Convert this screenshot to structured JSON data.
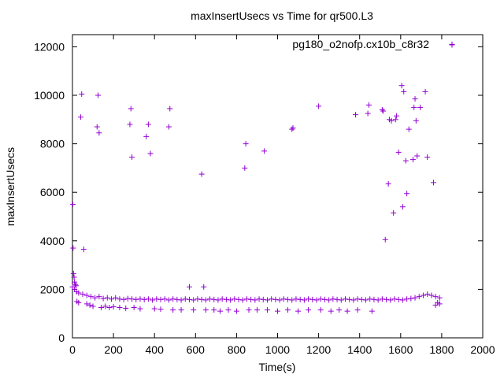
{
  "chart_data": {
    "type": "scatter",
    "title": "maxInsertUsecs vs Time for qr500.L3",
    "xlabel": "Time(s)",
    "ylabel": "maxInsertUsecs",
    "xlim": [
      0,
      2000
    ],
    "ylim": [
      0,
      12500
    ],
    "xticks": [
      0,
      200,
      400,
      600,
      800,
      1000,
      1200,
      1400,
      1600,
      1800,
      2000
    ],
    "yticks": [
      0,
      2000,
      4000,
      6000,
      8000,
      10000,
      12000
    ],
    "grid": false,
    "legend_position": "top-right",
    "marker": "plus",
    "color": "#9400d3",
    "series": [
      {
        "name": "pg180_o2nofp.cx10b_c8r32",
        "points": [
          [
            2,
            5500
          ],
          [
            3,
            3700
          ],
          [
            5,
            2650
          ],
          [
            8,
            2500
          ],
          [
            10,
            2300
          ],
          [
            14,
            2200
          ],
          [
            18,
            2150
          ],
          [
            22,
            1500
          ],
          [
            30,
            1450
          ],
          [
            40,
            9100
          ],
          [
            45,
            10050
          ],
          [
            55,
            3650
          ],
          [
            70,
            1400
          ],
          [
            85,
            1350
          ],
          [
            100,
            1300
          ],
          [
            120,
            8700
          ],
          [
            125,
            10000
          ],
          [
            130,
            8450
          ],
          [
            140,
            1250
          ],
          [
            160,
            1300
          ],
          [
            180,
            1250
          ],
          [
            200,
            1280
          ],
          [
            230,
            1250
          ],
          [
            260,
            1220
          ],
          [
            280,
            8800
          ],
          [
            285,
            9450
          ],
          [
            290,
            7450
          ],
          [
            300,
            1250
          ],
          [
            330,
            1200
          ],
          [
            360,
            8300
          ],
          [
            370,
            8800
          ],
          [
            380,
            7600
          ],
          [
            400,
            1200
          ],
          [
            430,
            1180
          ],
          [
            470,
            8700
          ],
          [
            475,
            9450
          ],
          [
            490,
            1150
          ],
          [
            530,
            1150
          ],
          [
            570,
            2100
          ],
          [
            590,
            1150
          ],
          [
            630,
            6750
          ],
          [
            640,
            2100
          ],
          [
            650,
            1150
          ],
          [
            690,
            1150
          ],
          [
            720,
            1100
          ],
          [
            760,
            1150
          ],
          [
            800,
            1100
          ],
          [
            840,
            7000
          ],
          [
            845,
            8000
          ],
          [
            860,
            1150
          ],
          [
            900,
            1150
          ],
          [
            935,
            7700
          ],
          [
            950,
            1150
          ],
          [
            1000,
            1100
          ],
          [
            1050,
            1150
          ],
          [
            1070,
            8600
          ],
          [
            1075,
            8650
          ],
          [
            1100,
            1100
          ],
          [
            1150,
            1150
          ],
          [
            1200,
            9550
          ],
          [
            1210,
            1150
          ],
          [
            1260,
            1100
          ],
          [
            1300,
            1150
          ],
          [
            1340,
            1100
          ],
          [
            1380,
            9200
          ],
          [
            1390,
            1150
          ],
          [
            1440,
            9250
          ],
          [
            1445,
            9600
          ],
          [
            1460,
            1100
          ],
          [
            1510,
            9400
          ],
          [
            1515,
            9350
          ],
          [
            1525,
            4050
          ],
          [
            1540,
            6350
          ],
          [
            1545,
            9000
          ],
          [
            1555,
            8950
          ],
          [
            1565,
            5150
          ],
          [
            1575,
            9000
          ],
          [
            1580,
            9150
          ],
          [
            1590,
            7650
          ],
          [
            1605,
            10400
          ],
          [
            1610,
            5400
          ],
          [
            1615,
            10150
          ],
          [
            1625,
            7300
          ],
          [
            1630,
            5950
          ],
          [
            1640,
            8600
          ],
          [
            1660,
            7350
          ],
          [
            1665,
            9500
          ],
          [
            1670,
            9850
          ],
          [
            1675,
            8950
          ],
          [
            1680,
            7500
          ],
          [
            1695,
            9500
          ],
          [
            1720,
            10150
          ],
          [
            1730,
            7450
          ],
          [
            1760,
            6400
          ],
          [
            1770,
            1350
          ],
          [
            1780,
            1450
          ],
          [
            1790,
            1400
          ],
          [
            1850,
            12100
          ],
          [
            0,
            2100
          ],
          [
            10,
            2000
          ],
          [
            20,
            1900
          ],
          [
            30,
            1850
          ],
          [
            50,
            1800
          ],
          [
            70,
            1750
          ],
          [
            90,
            1700
          ],
          [
            110,
            1650
          ],
          [
            130,
            1700
          ],
          [
            150,
            1620
          ],
          [
            170,
            1650
          ],
          [
            190,
            1600
          ],
          [
            210,
            1650
          ],
          [
            230,
            1600
          ],
          [
            250,
            1580
          ],
          [
            270,
            1620
          ],
          [
            290,
            1600
          ],
          [
            310,
            1580
          ],
          [
            330,
            1600
          ],
          [
            350,
            1580
          ],
          [
            370,
            1600
          ],
          [
            390,
            1560
          ],
          [
            410,
            1600
          ],
          [
            430,
            1580
          ],
          [
            450,
            1600
          ],
          [
            470,
            1560
          ],
          [
            490,
            1600
          ],
          [
            510,
            1580
          ],
          [
            530,
            1560
          ],
          [
            550,
            1600
          ],
          [
            570,
            1580
          ],
          [
            590,
            1560
          ],
          [
            610,
            1600
          ],
          [
            630,
            1580
          ],
          [
            650,
            1560
          ],
          [
            670,
            1600
          ],
          [
            690,
            1580
          ],
          [
            710,
            1560
          ],
          [
            730,
            1600
          ],
          [
            750,
            1580
          ],
          [
            770,
            1560
          ],
          [
            790,
            1600
          ],
          [
            810,
            1580
          ],
          [
            830,
            1560
          ],
          [
            850,
            1600
          ],
          [
            870,
            1580
          ],
          [
            890,
            1560
          ],
          [
            910,
            1600
          ],
          [
            930,
            1580
          ],
          [
            950,
            1560
          ],
          [
            970,
            1600
          ],
          [
            990,
            1580
          ],
          [
            1010,
            1560
          ],
          [
            1030,
            1600
          ],
          [
            1050,
            1580
          ],
          [
            1070,
            1560
          ],
          [
            1090,
            1600
          ],
          [
            1110,
            1580
          ],
          [
            1130,
            1560
          ],
          [
            1150,
            1600
          ],
          [
            1170,
            1580
          ],
          [
            1190,
            1560
          ],
          [
            1210,
            1600
          ],
          [
            1230,
            1580
          ],
          [
            1250,
            1560
          ],
          [
            1270,
            1600
          ],
          [
            1290,
            1580
          ],
          [
            1310,
            1560
          ],
          [
            1330,
            1600
          ],
          [
            1350,
            1580
          ],
          [
            1370,
            1560
          ],
          [
            1390,
            1600
          ],
          [
            1410,
            1580
          ],
          [
            1430,
            1560
          ],
          [
            1450,
            1600
          ],
          [
            1470,
            1580
          ],
          [
            1490,
            1560
          ],
          [
            1510,
            1600
          ],
          [
            1530,
            1580
          ],
          [
            1550,
            1560
          ],
          [
            1570,
            1600
          ],
          [
            1590,
            1580
          ],
          [
            1610,
            1560
          ],
          [
            1630,
            1600
          ],
          [
            1650,
            1620
          ],
          [
            1670,
            1650
          ],
          [
            1690,
            1700
          ],
          [
            1710,
            1750
          ],
          [
            1730,
            1800
          ],
          [
            1750,
            1750
          ],
          [
            1770,
            1700
          ],
          [
            1790,
            1650
          ]
        ]
      }
    ]
  }
}
